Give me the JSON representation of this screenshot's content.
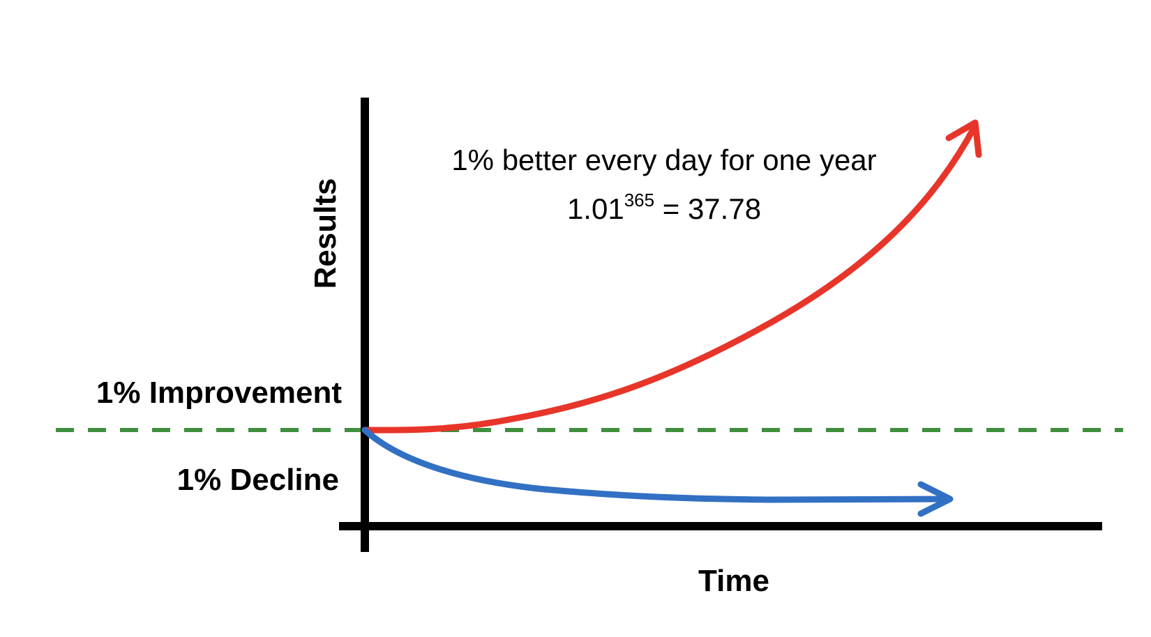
{
  "labels": {
    "y_axis": "Results",
    "x_axis": "Time",
    "improvement": "1% Improvement",
    "decline": "1% Decline",
    "annotation_line1": "1% better every day for one year",
    "formula_base": "1.01",
    "formula_exponent": "365",
    "formula_result": " = 37.78"
  },
  "colors": {
    "axes": "#000000",
    "baseline": "#3f8f3f",
    "improvement_curve": "#e8352a",
    "decline_curve": "#3270c4",
    "text": "#000000"
  },
  "curves": {
    "improvement": {
      "direction": "up",
      "shape": "exponential-growth"
    },
    "decline": {
      "direction": "flat-down",
      "shape": "exponential-decay"
    }
  }
}
